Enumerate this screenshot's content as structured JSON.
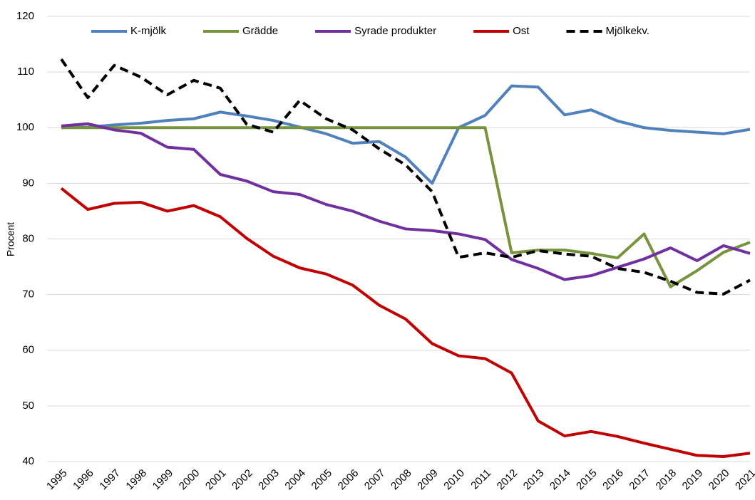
{
  "chart_data": {
    "type": "line",
    "y_label": "Procent",
    "categories": [
      "1995",
      "1996",
      "1997",
      "1998",
      "1999",
      "2000",
      "2001",
      "2002",
      "2003",
      "2004",
      "2005",
      "2006",
      "2007",
      "2008",
      "2009",
      "2010",
      "2011",
      "2012",
      "2013",
      "2014",
      "2015",
      "2016",
      "2017",
      "2018",
      "2019",
      "2020",
      "2021"
    ],
    "series": [
      {
        "name": "K-mjölk",
        "color": "#4f81bd",
        "dashed": false,
        "values": [
          100,
          100.1,
          100.5,
          100.8,
          101.3,
          101.6,
          102.8,
          102.1,
          101.3,
          100.1,
          98.9,
          97.2,
          97.5,
          94.7,
          90,
          100,
          102.2,
          107.5,
          107.3,
          102.3,
          103.2,
          101.2,
          100,
          99.5,
          99.2,
          98.9,
          99.7
        ]
      },
      {
        "name": "Grädde",
        "color": "#77933c",
        "dashed": false,
        "values": [
          100,
          100,
          100,
          100,
          100,
          100,
          100,
          100,
          100,
          100,
          100,
          100,
          100,
          100,
          100,
          100,
          100,
          77.5,
          78,
          78,
          77.4,
          76.6,
          80.9,
          71.4,
          74.3,
          77.6,
          79.4
        ]
      },
      {
        "name": "Syrade produkter",
        "color": "#7030a0",
        "dashed": false,
        "values": [
          100.3,
          100.7,
          99.6,
          99,
          96.5,
          96.1,
          91.6,
          90.4,
          88.5,
          88,
          86.2,
          85,
          83.2,
          81.8,
          81.5,
          80.9,
          79.9,
          76.3,
          74.7,
          72.7,
          73.4,
          74.9,
          76.4,
          78.4,
          76.1,
          78.8,
          77.4
        ]
      },
      {
        "name": "Ost",
        "color": "#c00000",
        "dashed": false,
        "values": [
          89.1,
          85.3,
          86.4,
          86.6,
          85,
          86,
          84,
          80.1,
          76.9,
          74.8,
          73.7,
          71.7,
          68.1,
          65.6,
          61.2,
          59,
          58.5,
          55.9,
          47.3,
          44.6,
          45.4,
          44.5,
          43.3,
          42.2,
          41.1,
          40.9,
          41.5
        ]
      },
      {
        "name": "Mjölkekv.",
        "color": "#000000",
        "dashed": true,
        "values": [
          112.3,
          105.4,
          111.2,
          109.1,
          105.9,
          108.5,
          107.1,
          100.6,
          99.2,
          104.9,
          101.6,
          99.6,
          96.2,
          93.3,
          88.5,
          76.7,
          77.5,
          76.7,
          77.9,
          77.3,
          76.9,
          74.7,
          74,
          72.4,
          70.4,
          70.1,
          72.6
        ]
      }
    ],
    "ylim": [
      40,
      120
    ],
    "yticks": [
      40,
      50,
      60,
      70,
      80,
      90,
      100,
      110,
      120
    ],
    "grid": true,
    "legend": "top"
  }
}
